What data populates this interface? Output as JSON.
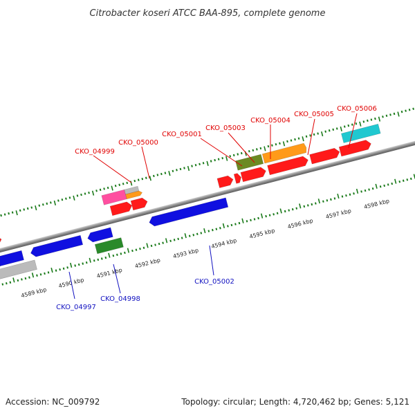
{
  "title": "Citrobacter koseri ATCC BAA-895, complete genome",
  "footer": {
    "accession": "Accession: NC_009792",
    "summary": "Topology: circular; Length: 4,720,462 bp; Genes: 5,121"
  },
  "colors": {
    "forward_label": "#e00000",
    "reverse_label": "#1010c0",
    "backbone": "#888888",
    "tick": "#1a7a1a"
  },
  "scale_labels": [
    "4589 kbp",
    "4590 kbp",
    "4591 kbp",
    "4592 kbp",
    "4593 kbp",
    "4594 kbp",
    "4595 kbp",
    "4596 kbp",
    "4597 kbp",
    "4598 kbp"
  ],
  "forward_gene_labels": [
    "CKO_04999",
    "CKO_05000",
    "CKO_05001",
    "CKO_05003",
    "CKO_05004",
    "CKO_05005",
    "CKO_05006"
  ],
  "reverse_gene_labels": [
    "CKO_04997",
    "CKO_04998",
    "CKO_05002"
  ],
  "features": [
    {
      "strand": "+",
      "color": "#ff1a1a"
    },
    {
      "strand": "+",
      "color": "#ff1a1a"
    },
    {
      "strand": "+",
      "color": "#ff1a1a"
    },
    {
      "strand": "+",
      "color": "#ff1a1a"
    },
    {
      "strand": "+",
      "color": "#ff1a1a"
    },
    {
      "strand": "+",
      "color": "#ff1a1a"
    },
    {
      "strand": "+",
      "color": "#ff1a1a"
    },
    {
      "strand": "+",
      "color": "#ff1a1a"
    },
    {
      "strand": "+",
      "color": "#ff1a1a"
    },
    {
      "strand": "+",
      "color": "#ff4fa0"
    },
    {
      "strand": "+",
      "color": "#bbbbbb"
    },
    {
      "strand": "+",
      "color": "#ff9a1a"
    },
    {
      "strand": "+",
      "color": "#6b8a22"
    },
    {
      "strand": "+",
      "color": "#ff9a1a"
    },
    {
      "strand": "+",
      "color": "#20c8d0"
    },
    {
      "strand": "-",
      "color": "#1010e0"
    },
    {
      "strand": "-",
      "color": "#1010e0"
    },
    {
      "strand": "-",
      "color": "#1010e0"
    },
    {
      "strand": "-",
      "color": "#1010e0"
    },
    {
      "strand": "-",
      "color": "#1010e0"
    },
    {
      "strand": "-",
      "color": "#2a8a2a"
    },
    {
      "strand": "-",
      "color": "#bbbbbb"
    }
  ]
}
